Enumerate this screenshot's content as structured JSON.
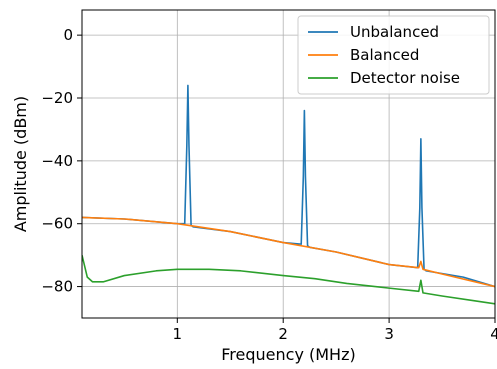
{
  "chart_data": {
    "type": "line",
    "xlabel": "Frequency (MHz)",
    "ylabel": "Amplitude (dBm)",
    "xlim": [
      0.1,
      4.0
    ],
    "ylim": [
      -90,
      8
    ],
    "xticks": [
      1,
      2,
      3,
      4
    ],
    "xtick_labels": [
      "1",
      "2",
      "3",
      "4"
    ],
    "yticks": [
      0,
      -20,
      -40,
      -60,
      -80
    ],
    "ytick_labels": [
      "0",
      "−20",
      "−40",
      "−60",
      "−80"
    ],
    "grid": true,
    "legend_position": "top-right",
    "series": [
      {
        "name": "Unbalanced",
        "color": "#1f77b4",
        "x": [
          0.1,
          0.5,
          1.0,
          1.07,
          1.09,
          1.1,
          1.11,
          1.13,
          1.15,
          1.5,
          2.0,
          2.17,
          2.19,
          2.2,
          2.21,
          2.23,
          2.25,
          2.5,
          3.0,
          3.27,
          3.29,
          3.3,
          3.31,
          3.33,
          3.35,
          3.7,
          4.0
        ],
        "y": [
          -58,
          -58.5,
          -60,
          -60,
          -35,
          -16,
          -35,
          -60.5,
          -61,
          -62.5,
          -66,
          -66.5,
          -45,
          -24,
          -45,
          -67,
          -67.5,
          -69,
          -73,
          -74,
          -55,
          -33,
          -55,
          -74.5,
          -75,
          -77,
          -80
        ]
      },
      {
        "name": "Balanced",
        "color": "#ff7f0e",
        "x": [
          0.1,
          0.5,
          1.0,
          1.5,
          2.0,
          2.5,
          3.0,
          3.28,
          3.3,
          3.32,
          3.5,
          4.0
        ],
        "y": [
          -58,
          -58.5,
          -60,
          -62.5,
          -66,
          -69,
          -73,
          -74,
          -72,
          -74.5,
          -76,
          -80
        ]
      },
      {
        "name": "Detector noise",
        "color": "#2ca02c",
        "x": [
          0.1,
          0.15,
          0.2,
          0.3,
          0.5,
          0.8,
          1.0,
          1.3,
          1.6,
          2.0,
          2.3,
          2.6,
          3.0,
          3.28,
          3.3,
          3.32,
          3.5,
          3.8,
          4.0
        ],
        "y": [
          -70,
          -77,
          -78.5,
          -78.5,
          -76.5,
          -75,
          -74.5,
          -74.5,
          -75,
          -76.5,
          -77.5,
          -79,
          -80.5,
          -81.5,
          -78,
          -82,
          -83,
          -84.5,
          -85.5
        ]
      }
    ]
  }
}
